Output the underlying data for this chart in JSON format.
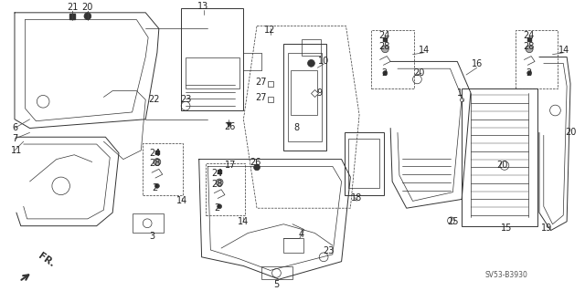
{
  "bg_color": "#ffffff",
  "fig_width": 6.4,
  "fig_height": 3.19,
  "dpi": 100,
  "line_color": "#333333",
  "label_color": "#222222",
  "diagram_id": "SV53-B3930"
}
